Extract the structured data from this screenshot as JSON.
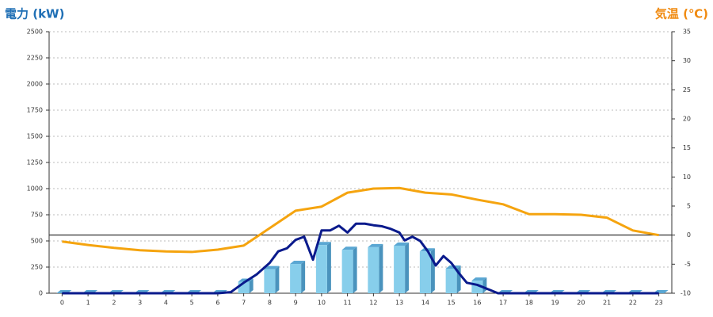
{
  "chart_data": {
    "type": "bar",
    "y_title": "電力 (kW)",
    "y2_title": "気温 (℃)",
    "categories": [
      "0",
      "1",
      "2",
      "3",
      "4",
      "5",
      "6",
      "7",
      "8",
      "9",
      "10",
      "11",
      "12",
      "13",
      "14",
      "15",
      "16",
      "17",
      "18",
      "19",
      "20",
      "21",
      "22",
      "23"
    ],
    "series": [
      {
        "type": "bar",
        "color": "#87ceeb",
        "values": [
          0,
          0,
          0,
          0,
          0,
          0,
          0,
          110,
          230,
          280,
          460,
          415,
          440,
          455,
          400,
          235,
          120,
          0,
          0,
          0,
          0,
          0,
          0,
          0
        ]
      },
      {
        "type": "line",
        "color": "#0a1a8c",
        "x": [
          0,
          1,
          2,
          3,
          4,
          5,
          6,
          6.5,
          7,
          7.5,
          8,
          8.33,
          8.67,
          9,
          9.33,
          9.67,
          10,
          10.33,
          10.67,
          11,
          11.33,
          11.67,
          12,
          12.33,
          12.67,
          13,
          13.2,
          13.5,
          13.8,
          14.1,
          14.4,
          14.7,
          15,
          15.3,
          15.6,
          16,
          16.5,
          16.8,
          17,
          18,
          19,
          20,
          21,
          22,
          23
        ],
        "values": [
          0,
          0,
          0,
          0,
          0,
          0,
          0,
          10,
          100,
          180,
          290,
          400,
          430,
          510,
          540,
          320,
          600,
          600,
          645,
          580,
          665,
          665,
          650,
          640,
          615,
          580,
          505,
          540,
          500,
          400,
          265,
          355,
          290,
          190,
          100,
          80,
          30,
          0,
          0,
          0,
          0,
          0,
          0,
          0,
          0
        ]
      },
      {
        "type": "line",
        "axis": "y2",
        "color": "#f5a40f",
        "values": [
          -1.1,
          -1.7,
          -2.2,
          -2.6,
          -2.8,
          -2.9,
          -2.5,
          -1.8,
          1.2,
          4.2,
          4.9,
          7.3,
          8.0,
          8.1,
          7.3,
          7.0,
          6.1,
          5.3,
          3.6,
          3.6,
          3.5,
          3.0,
          0.8,
          0
        ]
      }
    ],
    "ylim": [
      0,
      2500
    ],
    "yticks": [
      0,
      250,
      500,
      750,
      1000,
      1250,
      1500,
      1750,
      2000,
      2250,
      2500
    ],
    "y2lim": [
      -10,
      35
    ],
    "y2ticks": [
      -10,
      -5,
      0,
      5,
      10,
      15,
      20,
      25,
      30,
      35
    ],
    "grid": true,
    "y2_zero_line": true
  }
}
